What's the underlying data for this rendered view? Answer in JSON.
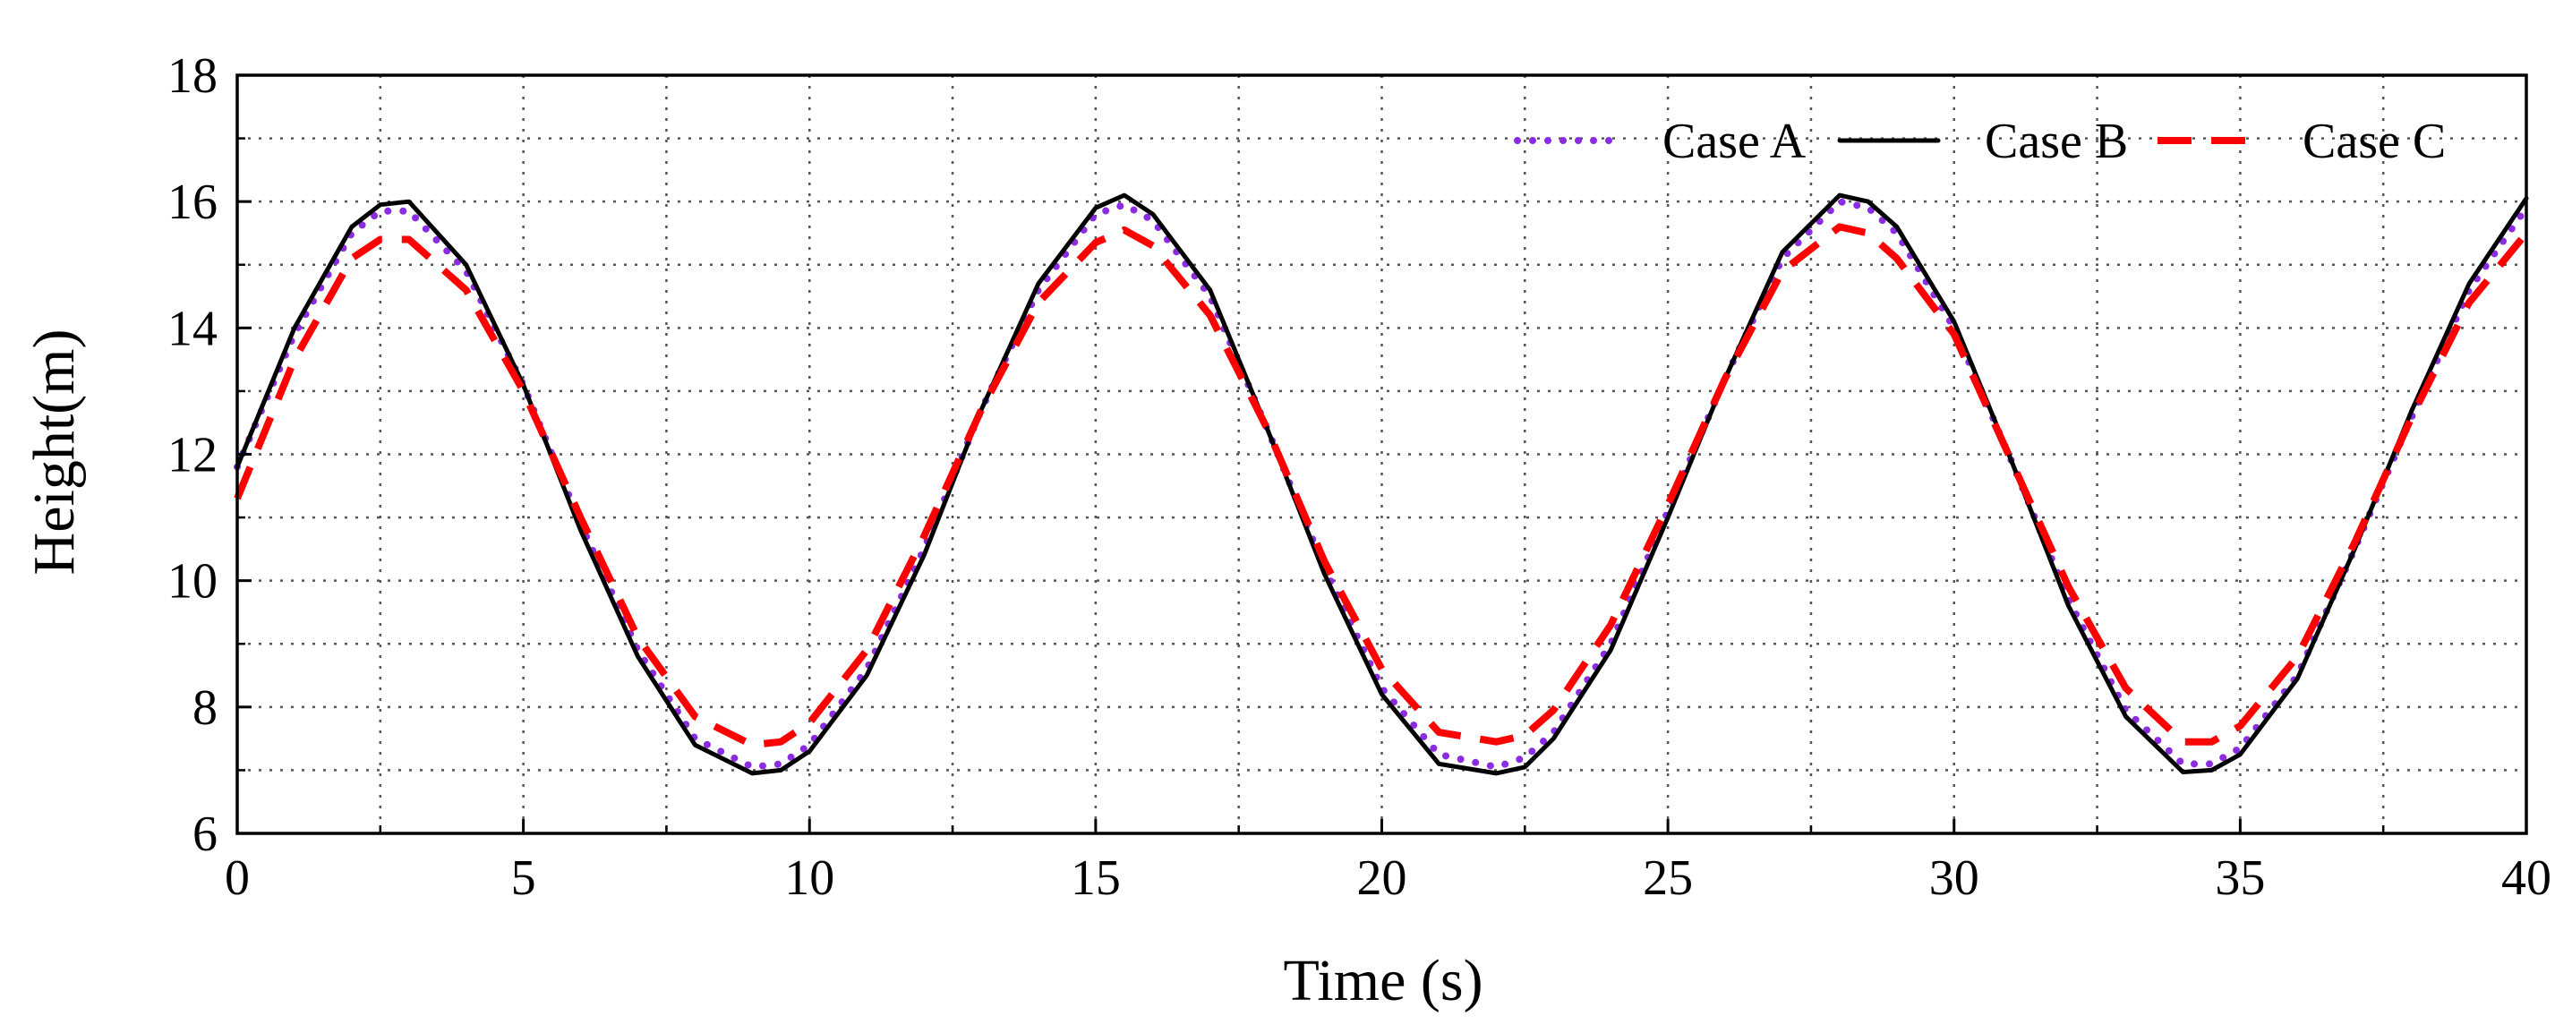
{
  "chart_data": {
    "type": "line",
    "title": "",
    "xlabel": "Time (s)",
    "ylabel": "Height(m)",
    "xlim": [
      0,
      40
    ],
    "ylim": [
      6,
      18
    ],
    "xticks": [
      0,
      5,
      10,
      15,
      20,
      25,
      30,
      35,
      40
    ],
    "yticks": [
      6,
      8,
      10,
      12,
      14,
      16,
      18
    ],
    "xtick_labels": [
      "0",
      "5",
      "10",
      "15",
      "20",
      "25",
      "30",
      "35",
      "40"
    ],
    "ytick_labels": [
      "6",
      "8",
      "10",
      "12",
      "14",
      "16",
      "18"
    ],
    "minor_grid_x": [
      2.5,
      7.5,
      12.5,
      17.5,
      22.5,
      27.5,
      32.5,
      37.5
    ],
    "minor_grid_y": [
      7,
      9,
      11,
      13,
      15,
      17
    ],
    "grid": true,
    "legend_position": "top-right",
    "series": [
      {
        "name": "Case A",
        "color": "#8b2be2",
        "style": "dotted",
        "x": [
          0,
          1,
          2,
          2.5,
          3,
          4,
          5,
          6,
          7,
          8,
          9,
          9.5,
          10,
          11,
          12,
          13,
          14,
          15,
          15.5,
          16,
          17,
          18,
          19,
          20,
          21,
          22,
          22.5,
          23,
          24,
          25,
          26,
          27,
          28,
          28.5,
          29,
          30,
          31,
          32,
          33,
          34,
          34.5,
          35,
          36,
          37,
          38,
          39,
          40
        ],
        "y": [
          11.8,
          13.9,
          15.5,
          15.85,
          15.85,
          14.9,
          13.1,
          10.9,
          8.9,
          7.5,
          7.05,
          7.1,
          7.4,
          8.6,
          10.5,
          12.7,
          14.6,
          15.8,
          15.95,
          15.7,
          14.5,
          12.4,
          10.2,
          8.3,
          7.25,
          7.05,
          7.2,
          7.6,
          9.0,
          11.1,
          13.2,
          15.1,
          16.0,
          15.9,
          15.5,
          14.0,
          11.9,
          9.7,
          7.95,
          7.1,
          7.1,
          7.35,
          8.5,
          10.5,
          12.6,
          14.6,
          15.9
        ]
      },
      {
        "name": "Case B",
        "color": "#000000",
        "style": "solid",
        "x": [
          0,
          1,
          2,
          2.5,
          3,
          4,
          5,
          6,
          7,
          8,
          9,
          9.5,
          10,
          11,
          12,
          13,
          14,
          15,
          15.5,
          16,
          17,
          18,
          19,
          20,
          21,
          22,
          22.5,
          23,
          24,
          25,
          26,
          27,
          28,
          28.5,
          29,
          30,
          31,
          32,
          33,
          34,
          34.5,
          35,
          36,
          37,
          38,
          39,
          40
        ],
        "y": [
          11.8,
          14.0,
          15.6,
          15.95,
          16.0,
          15.0,
          13.1,
          10.8,
          8.8,
          7.4,
          6.95,
          7.0,
          7.3,
          8.5,
          10.4,
          12.7,
          14.7,
          15.9,
          16.1,
          15.8,
          14.6,
          12.4,
          10.1,
          8.2,
          7.1,
          6.95,
          7.05,
          7.5,
          8.9,
          11.0,
          13.2,
          15.2,
          16.1,
          16.0,
          15.6,
          14.1,
          11.9,
          9.6,
          7.85,
          6.97,
          7.0,
          7.25,
          8.45,
          10.5,
          12.7,
          14.7,
          16.05
        ]
      },
      {
        "name": "Case C",
        "color": "#ff0000",
        "style": "dashed",
        "x": [
          0,
          1,
          2,
          2.5,
          3,
          4,
          5,
          6,
          7,
          8,
          9,
          9.5,
          10,
          11,
          12,
          13,
          14,
          15,
          15.5,
          16,
          17,
          18,
          19,
          20,
          21,
          22,
          22.5,
          23,
          24,
          25,
          26,
          27,
          28,
          28.5,
          29,
          30,
          31,
          32,
          33,
          34,
          34.5,
          35,
          36,
          37,
          38,
          39,
          40
        ],
        "y": [
          11.3,
          13.5,
          15.1,
          15.4,
          15.4,
          14.6,
          13.0,
          11.0,
          9.1,
          7.85,
          7.4,
          7.45,
          7.75,
          8.9,
          10.7,
          12.7,
          14.4,
          15.35,
          15.55,
          15.3,
          14.2,
          12.4,
          10.3,
          8.6,
          7.6,
          7.45,
          7.55,
          7.95,
          9.3,
          11.2,
          13.2,
          14.9,
          15.6,
          15.5,
          15.1,
          13.9,
          11.9,
          9.9,
          8.3,
          7.45,
          7.45,
          7.7,
          8.8,
          10.6,
          12.6,
          14.4,
          15.5
        ]
      }
    ]
  }
}
